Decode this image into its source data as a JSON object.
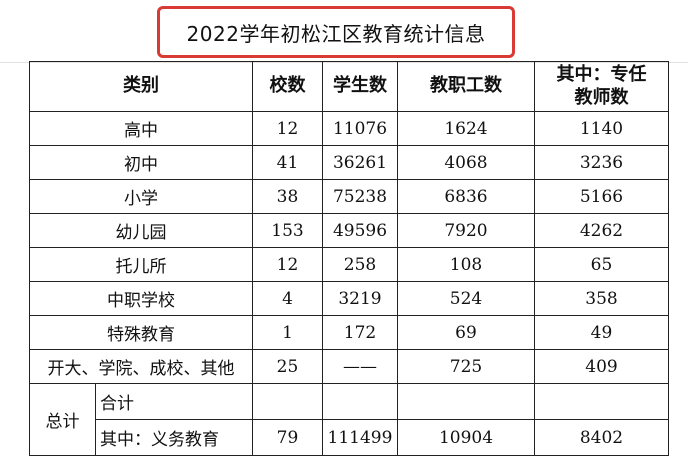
{
  "title": "2022学年初松江区教育统计信息",
  "headers": {
    "category": "类别",
    "schools": "校数",
    "students": "学生数",
    "staff": "教职工数",
    "teachers": "其中：专任教师数"
  },
  "rows": [
    {
      "category": "高中",
      "schools": "12",
      "students": "11076",
      "staff": "1624",
      "teachers": "1140"
    },
    {
      "category": "初中",
      "schools": "41",
      "students": "36261",
      "staff": "4068",
      "teachers": "3236"
    },
    {
      "category": "小学",
      "schools": "38",
      "students": "75238",
      "staff": "6836",
      "teachers": "5166"
    },
    {
      "category": "幼儿园",
      "schools": "153",
      "students": "49596",
      "staff": "7920",
      "teachers": "4262"
    },
    {
      "category": "托儿所",
      "schools": "12",
      "students": "258",
      "staff": "108",
      "teachers": "65"
    },
    {
      "category": "中职学校",
      "schools": "4",
      "students": "3219",
      "staff": "524",
      "teachers": "358"
    },
    {
      "category": "特殊教育",
      "schools": "1",
      "students": "172",
      "staff": "69",
      "teachers": "49"
    },
    {
      "category": "开大、学院、成校、其他",
      "schools": "25",
      "students": "——",
      "staff": "725",
      "teachers": "409"
    }
  ],
  "total": {
    "label": "总计",
    "sum_label": "合计",
    "compulsory_label": "其中：义务教育",
    "compulsory": {
      "schools": "79",
      "students": "111499",
      "staff": "10904",
      "teachers": "8402"
    }
  }
}
